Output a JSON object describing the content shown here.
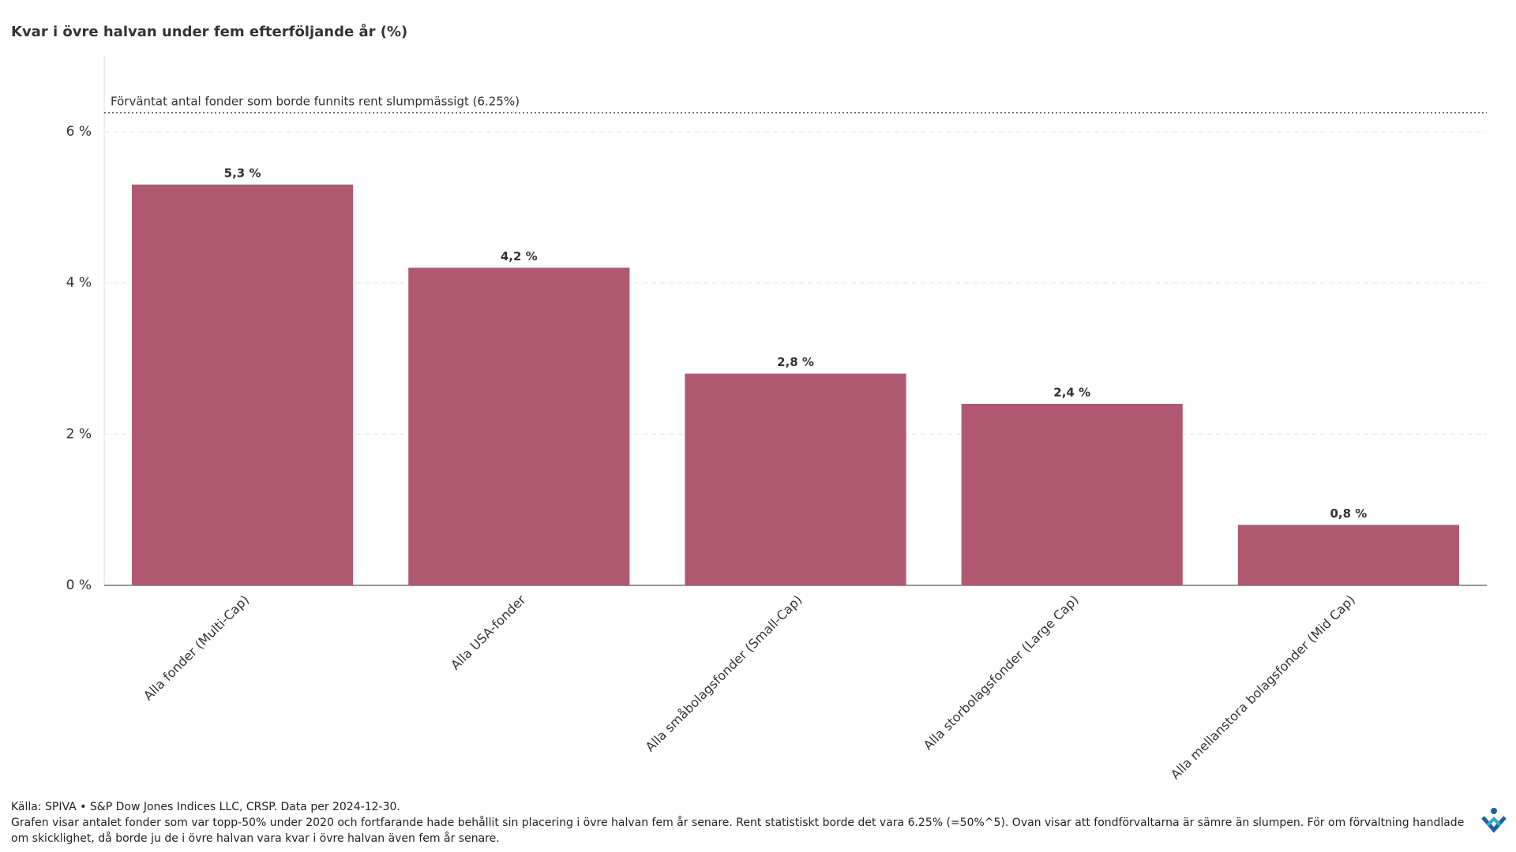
{
  "chart_data": {
    "type": "bar",
    "title": "Kvar i övre halvan under fem efterföljande år (%)",
    "categories": [
      "Alla fonder (Multi-Cap)",
      "Alla USA-fonder",
      "Alla småbolagsfonder (Small-Cap)",
      "Alla storbolagsfonder (Large Cap)",
      "Alla mellanstora bolagsfonder (Mid Cap)"
    ],
    "values": [
      5.3,
      4.2,
      2.8,
      2.4,
      0.8
    ],
    "value_labels": [
      "5,3 %",
      "4,2 %",
      "2,8 %",
      "2,4 %",
      "0,8 %"
    ],
    "color": "#b05870",
    "ylim": [
      0,
      7
    ],
    "yticks": [
      {
        "value": 0,
        "label": "0 %"
      },
      {
        "value": 2,
        "label": "2 %"
      },
      {
        "value": 4,
        "label": "4 %"
      },
      {
        "value": 6,
        "label": "6 %"
      }
    ],
    "grid": true,
    "reference_line": {
      "value": 6.25,
      "label": "Förväntat antal fonder som borde funnits rent slumpmässigt (6.25%)"
    },
    "source": "Källa: SPIVA • S&P Dow Jones Indices LLC, CRSP. Data per 2024-12-30.",
    "note": "Grafen visar antalet fonder som var topp-50% under 2020 och fortfarande hade behållit sin placering i övre halvan fem år senare. Rent statistiskt borde det vara 6.25% (=50%^5). Ovan visar att fondförvaltarna är sämre än slumpen. För om förvaltning handlade om skicklighet, då borde ju de i övre halvan vara kvar i övre halvan även fem år senare."
  }
}
